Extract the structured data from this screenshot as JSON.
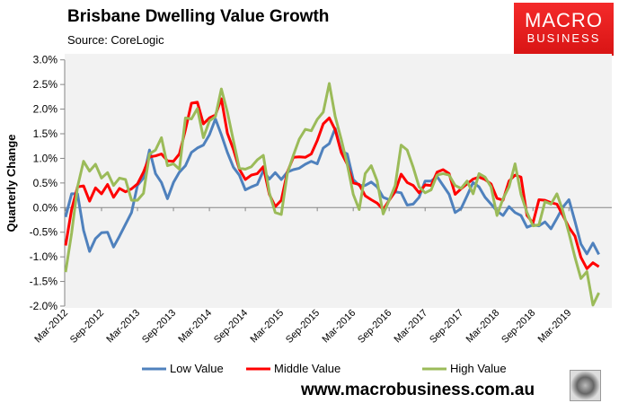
{
  "header": {
    "title": "Brisbane Dwelling Value Growth",
    "source": "Source: CoreLogic"
  },
  "logo": {
    "line1": "MACRO",
    "line2": "BUSINESS"
  },
  "footer": {
    "website": "www.macrobusiness.com.au"
  },
  "chart_data": {
    "type": "line",
    "title": "Brisbane Dwelling Value Growth",
    "xlabel": "",
    "ylabel": "Quarterly Change",
    "x_start": "Mar-2012",
    "x_frequency": "monthly",
    "x_ticks": [
      "Mar-2012",
      "Sep-2012",
      "Mar-2013",
      "Sep-2013",
      "Mar-2014",
      "Sep-2014",
      "Mar-2015",
      "Sep-2015",
      "Mar-2016",
      "Sep-2016",
      "Mar-2017",
      "Sep-2017",
      "Mar-2018",
      "Sep-2018",
      "Mar-2019"
    ],
    "y_ticks": [
      "3.0%",
      "2.5%",
      "2.0%",
      "1.5%",
      "1.0%",
      "0.5%",
      "0.0%",
      "-0.5%",
      "-1.0%",
      "-1.5%",
      "-2.0%"
    ],
    "ylim": [
      -2.0,
      3.0
    ],
    "grid": false,
    "legend_position": "bottom",
    "series": [
      {
        "name": "Low Value",
        "color": "#4f81bd",
        "values": [
          -0.19,
          0.28,
          0.28,
          -0.46,
          -0.89,
          -0.63,
          -0.51,
          -0.5,
          -0.8,
          -0.58,
          -0.34,
          -0.1,
          0.45,
          0.6,
          1.17,
          0.69,
          0.51,
          0.18,
          0.51,
          0.72,
          0.85,
          1.12,
          1.21,
          1.27,
          1.48,
          1.8,
          1.48,
          1.12,
          0.82,
          0.66,
          0.36,
          0.42,
          0.47,
          0.75,
          0.58,
          0.71,
          0.57,
          0.72,
          0.77,
          0.8,
          0.88,
          0.94,
          0.89,
          1.21,
          1.3,
          1.61,
          1.15,
          1.09,
          0.57,
          0.45,
          0.45,
          0.52,
          0.42,
          0.21,
          0.16,
          0.32,
          0.3,
          0.05,
          0.07,
          0.21,
          0.54,
          0.54,
          0.63,
          0.45,
          0.27,
          -0.1,
          -0.02,
          0.24,
          0.51,
          0.42,
          0.21,
          0.07,
          -0.07,
          -0.16,
          0.02,
          -0.1,
          -0.16,
          -0.4,
          -0.35,
          -0.37,
          -0.29,
          -0.43,
          -0.22,
          0.01,
          0.16,
          -0.28,
          -0.74,
          -0.94,
          -0.72,
          -0.95
        ]
      },
      {
        "name": "Middle Value",
        "color": "#ff0000",
        "values": [
          -0.77,
          -0.04,
          0.42,
          0.44,
          0.13,
          0.4,
          0.28,
          0.47,
          0.21,
          0.39,
          0.32,
          0.38,
          0.48,
          0.72,
          1.03,
          1.05,
          1.09,
          0.95,
          0.94,
          1.09,
          1.58,
          2.12,
          2.14,
          1.7,
          1.82,
          1.88,
          2.21,
          1.51,
          1.18,
          0.78,
          0.57,
          0.66,
          0.69,
          0.83,
          0.27,
          0.02,
          0.15,
          0.72,
          1.02,
          1.03,
          1.02,
          1.09,
          1.36,
          1.7,
          1.82,
          1.58,
          1.12,
          0.88,
          0.5,
          0.47,
          0.24,
          0.16,
          0.09,
          -0.04,
          0.15,
          0.33,
          0.68,
          0.51,
          0.45,
          0.3,
          0.46,
          0.45,
          0.72,
          0.77,
          0.69,
          0.27,
          0.38,
          0.48,
          0.58,
          0.62,
          0.57,
          0.48,
          0.19,
          0.15,
          0.54,
          0.66,
          0.62,
          -0.16,
          -0.31,
          0.16,
          0.15,
          0.1,
          0.07,
          -0.16,
          -0.4,
          -0.58,
          -1.01,
          -1.24,
          -1.12,
          -1.2
        ]
      },
      {
        "name": "High Value",
        "color": "#9bbb59",
        "values": [
          -1.31,
          -0.52,
          0.42,
          0.94,
          0.74,
          0.88,
          0.6,
          0.71,
          0.45,
          0.6,
          0.57,
          0.15,
          0.15,
          0.29,
          1.09,
          1.17,
          1.42,
          0.85,
          0.89,
          0.78,
          1.82,
          1.8,
          2.01,
          1.42,
          1.76,
          1.85,
          2.41,
          1.94,
          1.36,
          0.8,
          0.78,
          0.83,
          0.97,
          1.06,
          0.3,
          -0.1,
          -0.14,
          0.69,
          1.06,
          1.39,
          1.59,
          1.56,
          1.79,
          1.94,
          2.52,
          1.85,
          1.39,
          0.88,
          0.27,
          -0.04,
          0.69,
          0.85,
          0.54,
          -0.13,
          0.15,
          0.45,
          1.27,
          1.17,
          0.82,
          0.42,
          0.3,
          0.36,
          0.66,
          0.69,
          0.66,
          0.45,
          0.39,
          0.54,
          0.28,
          0.69,
          0.62,
          0.42,
          -0.16,
          0.18,
          0.42,
          0.89,
          0.27,
          -0.1,
          -0.37,
          -0.35,
          0.12,
          0.07,
          0.28,
          -0.07,
          -0.52,
          -1.01,
          -1.44,
          -1.3,
          -1.98,
          -1.73
        ]
      }
    ]
  }
}
